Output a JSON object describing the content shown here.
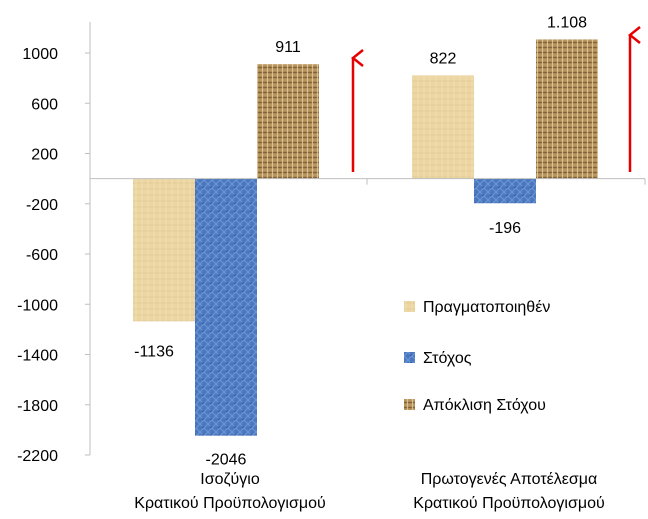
{
  "chart_data": {
    "type": "bar",
    "categories": [
      [
        "Ισοζύγιο",
        "Κρατικού Προϋπολογισμού"
      ],
      [
        "Πρωτογενές Αποτέλεσμα",
        "Κρατικού Προϋπολογισμού"
      ]
    ],
    "series": [
      {
        "name": "Πραγματοποιηθέν",
        "values": [
          -1136,
          822
        ],
        "labels": [
          "-1136",
          "822"
        ],
        "color": "#e8cf96"
      },
      {
        "name": "Στόχος",
        "values": [
          -2046,
          -196
        ],
        "labels": [
          "-2046",
          "-196"
        ],
        "color": "#4f7cc2"
      },
      {
        "name": "Απόκλιση Στόχου",
        "values": [
          911,
          1108
        ],
        "labels": [
          "911",
          "1.108"
        ],
        "color": "#a8844e"
      }
    ],
    "ylim": [
      -2200,
      1300
    ],
    "yticks": [
      1000,
      600,
      200,
      -200,
      -600,
      -1000,
      -1400,
      -1800,
      -2200
    ],
    "grid": false,
    "legend_position": "right-middle",
    "annotations": {
      "arrows": {
        "direction": "up",
        "color": "#e60000",
        "count": 2
      }
    }
  }
}
